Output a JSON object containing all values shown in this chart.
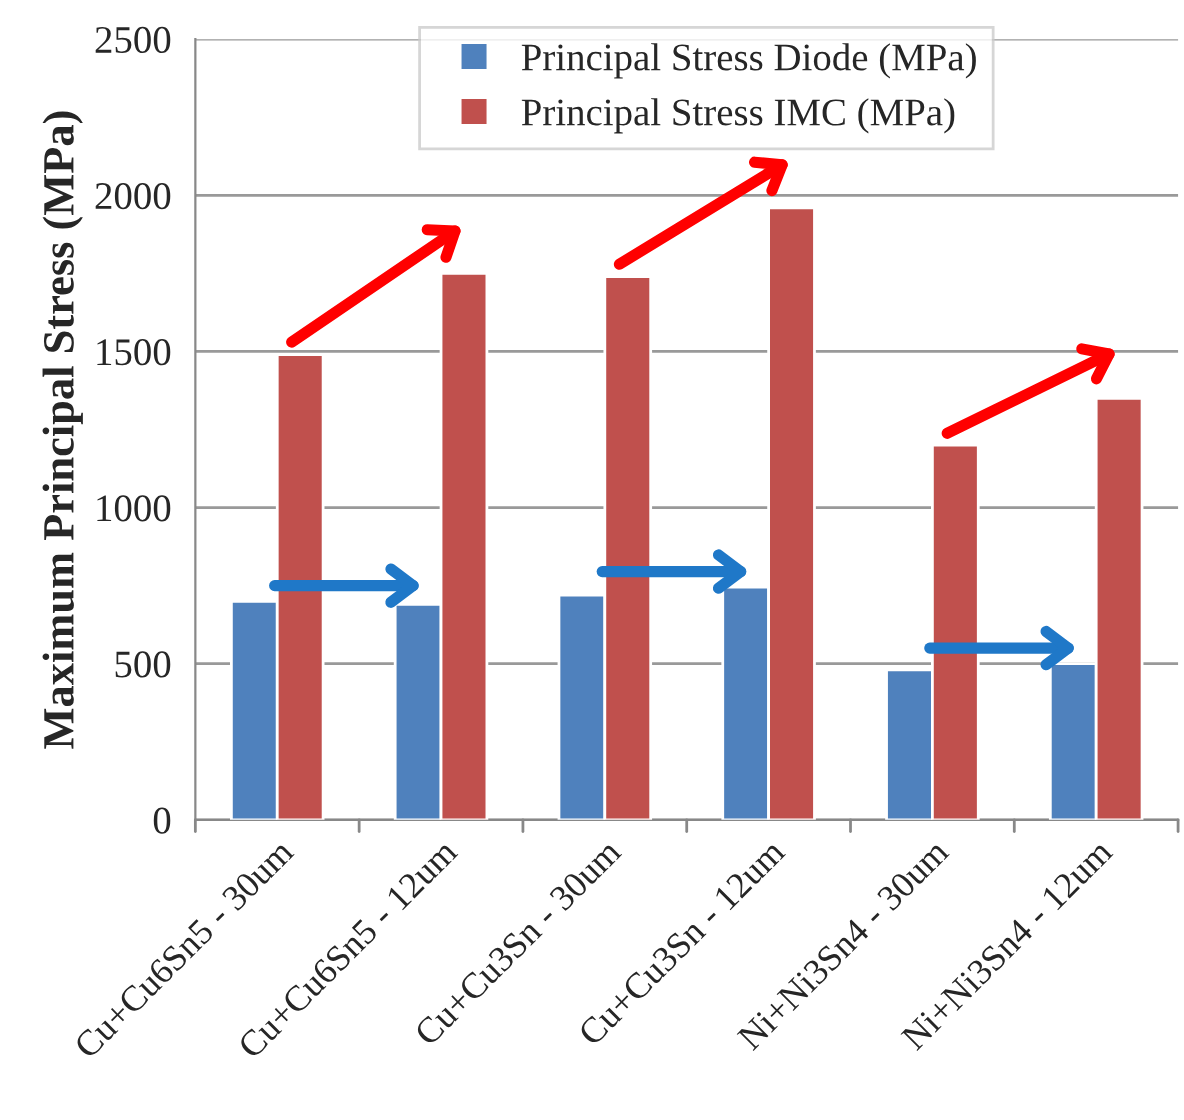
{
  "chart_data": {
    "type": "bar",
    "ylabel": "Maximum Principal Stress (MPa)",
    "categories": [
      "Cu+Cu6Sn5 - 30um",
      "Cu+Cu6Sn5 - 12um",
      "Cu+Cu3Sn - 30um",
      "Cu+Cu3Sn - 12um",
      "Ni+Ni3Sn4 - 30um",
      "Ni+Ni3Sn4 - 12um"
    ],
    "series": [
      {
        "name": "Principal Stress Diode (MPa)",
        "color": "#4f81bd",
        "values": [
          700,
          690,
          720,
          745,
          480,
          500
        ]
      },
      {
        "name": "Principal Stress IMC (MPa)",
        "color": "#c0504d",
        "values": [
          1490,
          1750,
          1740,
          1960,
          1200,
          1350
        ]
      }
    ],
    "ylim": [
      0,
      2500
    ],
    "yticks": [
      0,
      500,
      1000,
      1500,
      2000,
      2500
    ],
    "grid": "y",
    "legend": "top"
  }
}
